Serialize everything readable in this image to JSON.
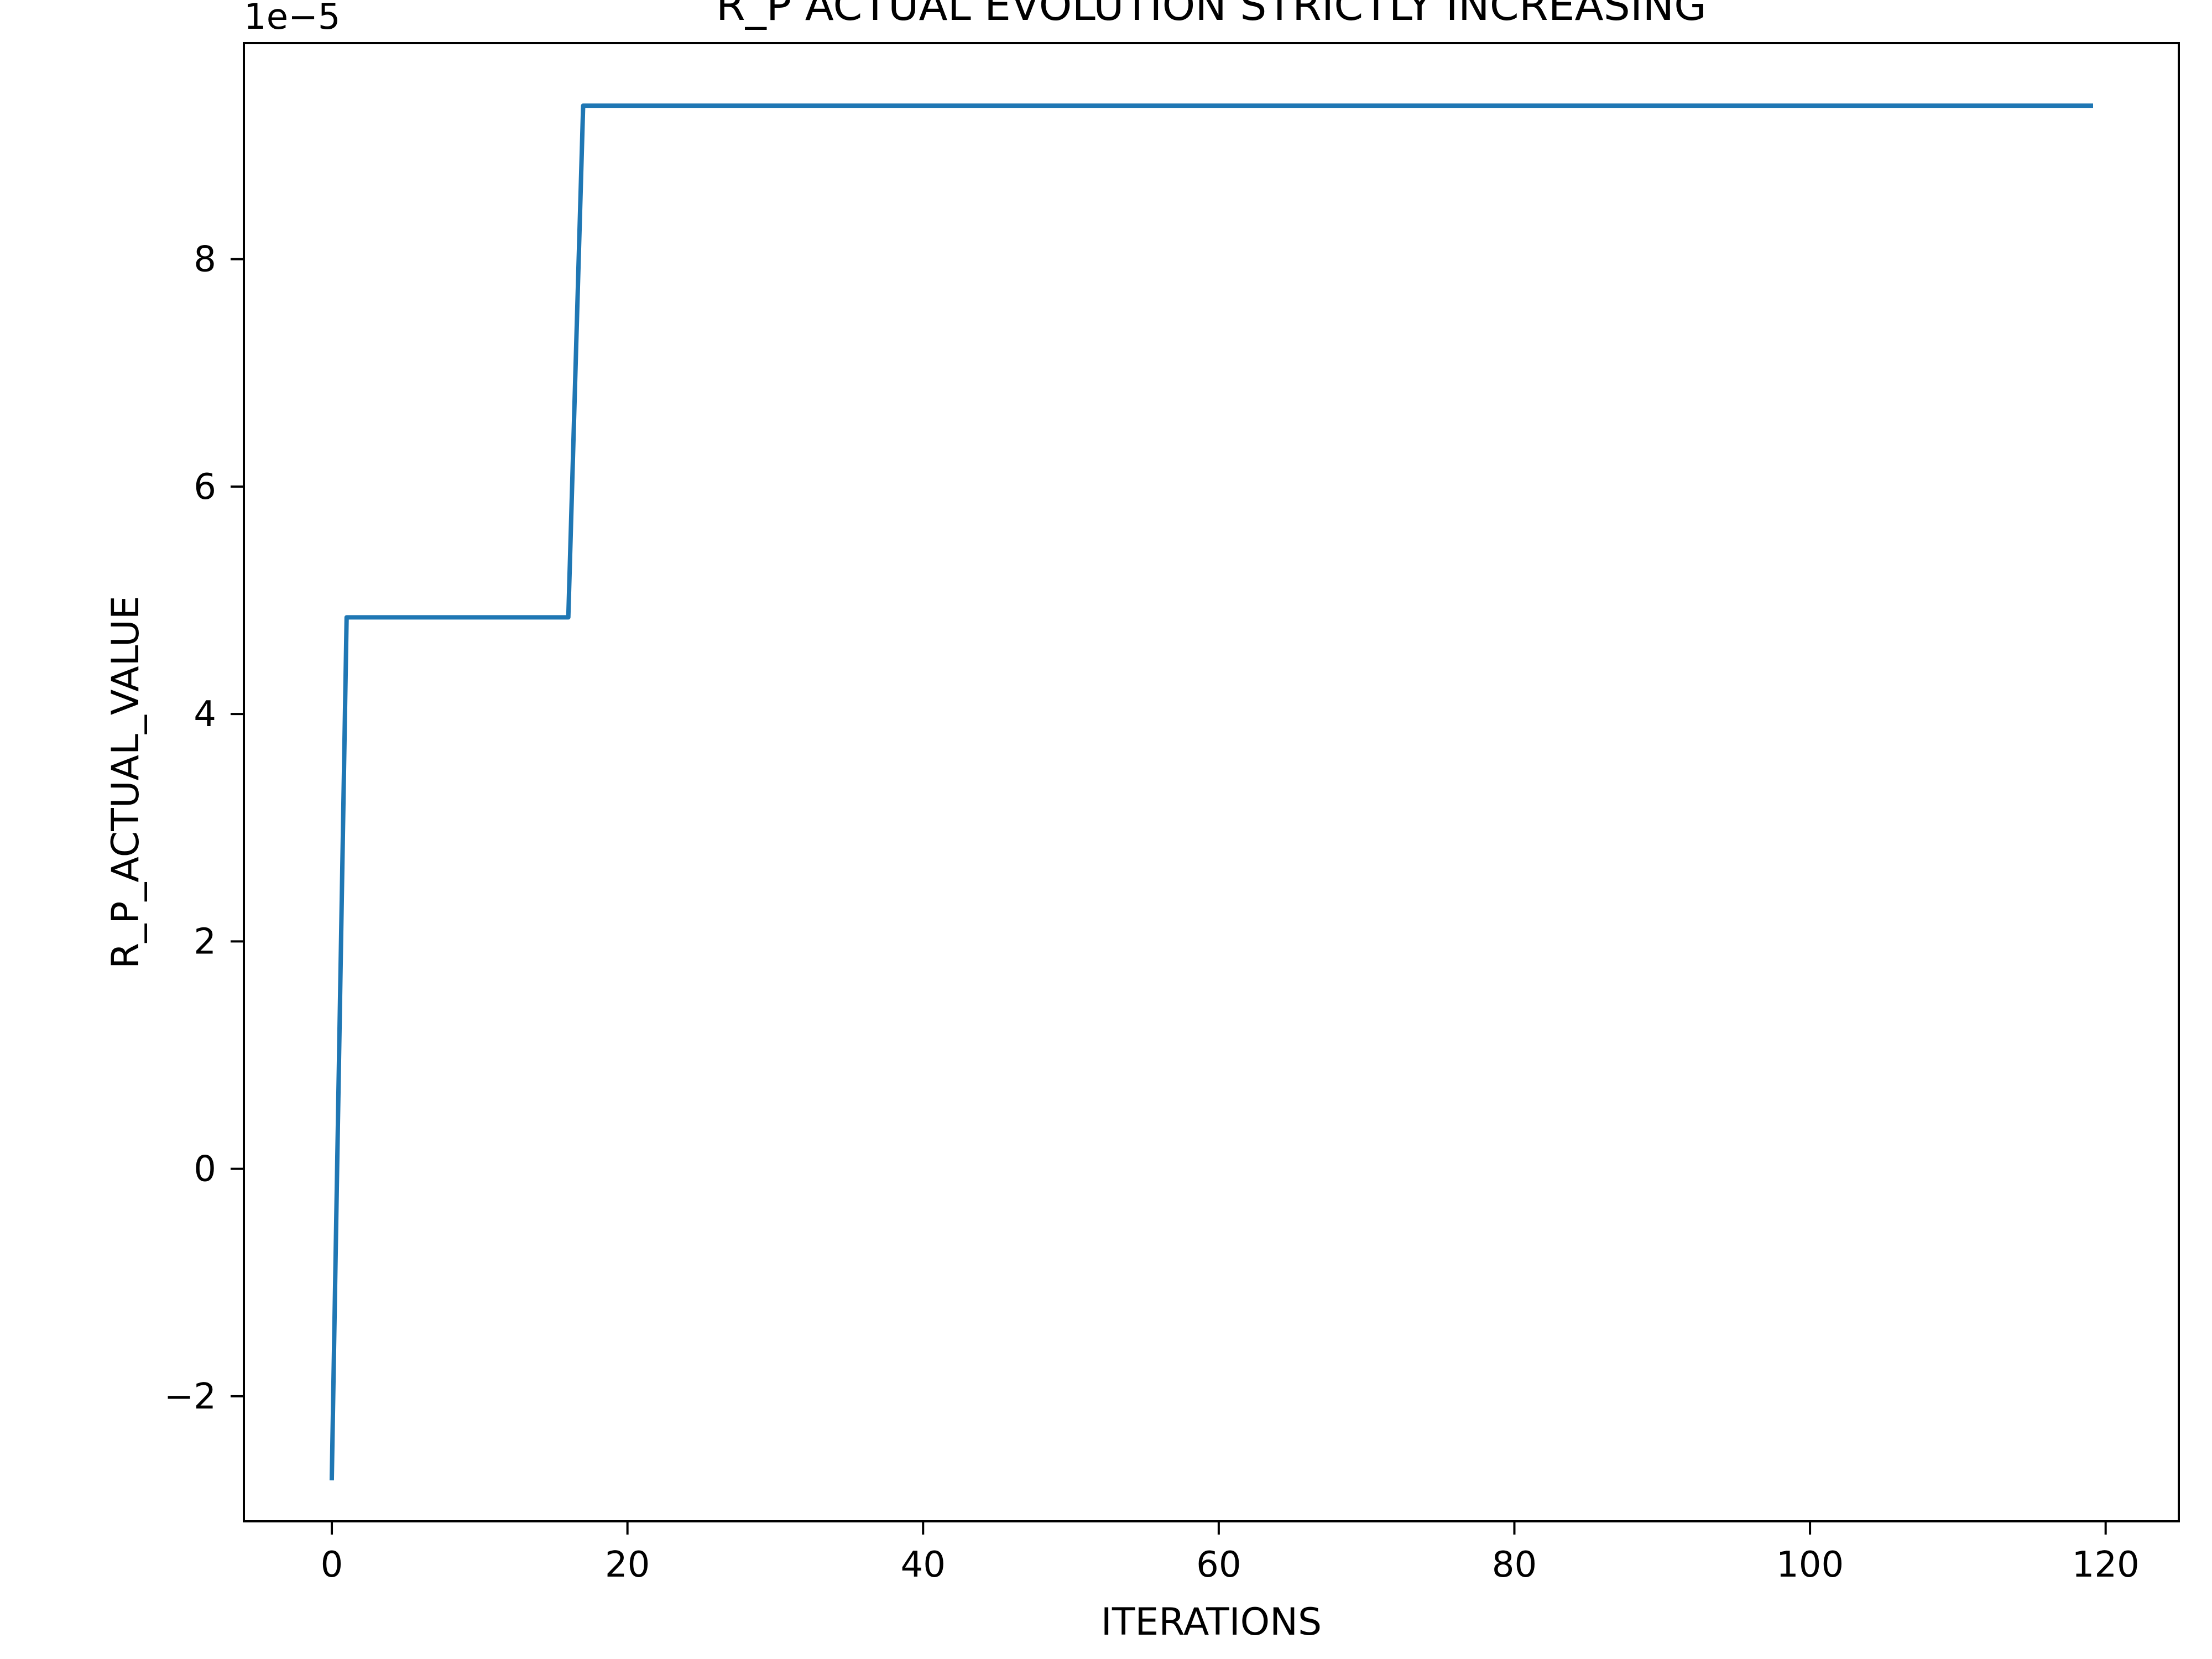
{
  "chart_data": {
    "type": "line",
    "title": "R_P ACTUAL EVOLUTION STRICTLY INCREASING",
    "xlabel": "ITERATIONS",
    "ylabel": "R_P_ACTUAL_VALUE",
    "y_offset_label": "1e−5",
    "xlim": [
      -5.95,
      124.95
    ],
    "ylim": [
      -3.1,
      9.9
    ],
    "grid": false,
    "legend": "none",
    "x_ticks": [
      {
        "value": 0,
        "label": "0"
      },
      {
        "value": 20,
        "label": "20"
      },
      {
        "value": 40,
        "label": "40"
      },
      {
        "value": 60,
        "label": "60"
      },
      {
        "value": 80,
        "label": "80"
      },
      {
        "value": 100,
        "label": "100"
      },
      {
        "value": 120,
        "label": "120"
      }
    ],
    "y_ticks": [
      {
        "value": -2,
        "label": "−2"
      },
      {
        "value": 0,
        "label": "0"
      },
      {
        "value": 2,
        "label": "2"
      },
      {
        "value": 4,
        "label": "4"
      },
      {
        "value": 6,
        "label": "6"
      },
      {
        "value": 8,
        "label": "8"
      }
    ],
    "series": [
      {
        "color": "#1f77b4",
        "x": [
          0,
          1,
          16,
          17,
          119
        ],
        "y": [
          -2.72,
          4.85,
          4.85,
          9.35,
          9.35
        ]
      }
    ]
  }
}
